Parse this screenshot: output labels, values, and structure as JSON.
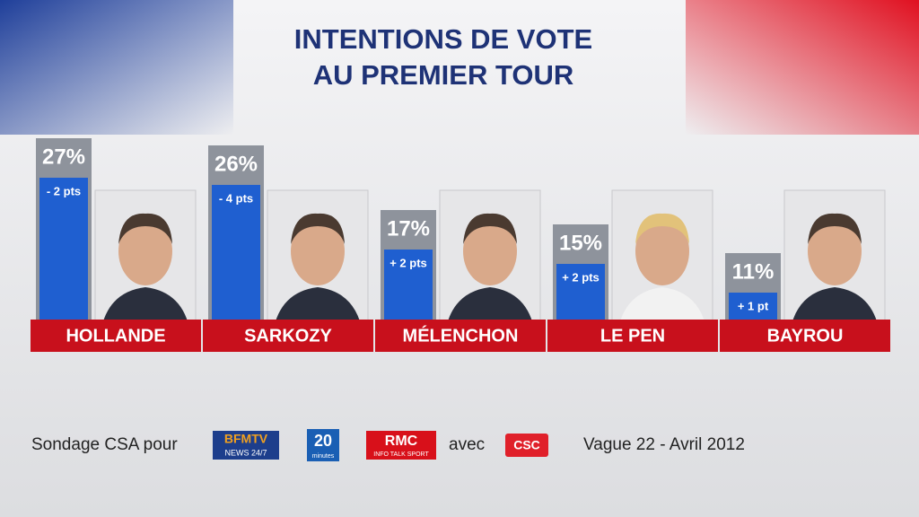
{
  "chart_data": {
    "type": "bar",
    "title": [
      "INTENTIONS DE VOTE",
      "AU PREMIER TOUR"
    ],
    "categories": [
      "HOLLANDE",
      "SARKOZY",
      "MÉLENCHON",
      "LE PEN",
      "BAYROU"
    ],
    "values": [
      27,
      26,
      17,
      15,
      11
    ],
    "value_labels": [
      "27%",
      "26%",
      "17%",
      "15%",
      "11%"
    ],
    "changes": [
      {
        "value": -2,
        "label": "- 2 pts"
      },
      {
        "value": -4,
        "label": "- 4 pts"
      },
      {
        "value": 2,
        "label": "+ 2 pts"
      },
      {
        "value": 2,
        "label": "+ 2 pts"
      },
      {
        "value": 1,
        "label": "+ 1 pt"
      }
    ],
    "color": "#8e939c",
    "ylim": [
      0,
      30
    ]
  },
  "footer": {
    "source": "Sondage CSA pour",
    "logos": [
      [
        "BFMTV",
        "NEWS 24/7"
      ],
      [
        "20",
        "minutes"
      ],
      [
        "RMC",
        "INFO TALK SPORT"
      ]
    ],
    "with": "avec",
    "partner": "CSC",
    "wave": "Vague 22 - Avril 2012"
  }
}
